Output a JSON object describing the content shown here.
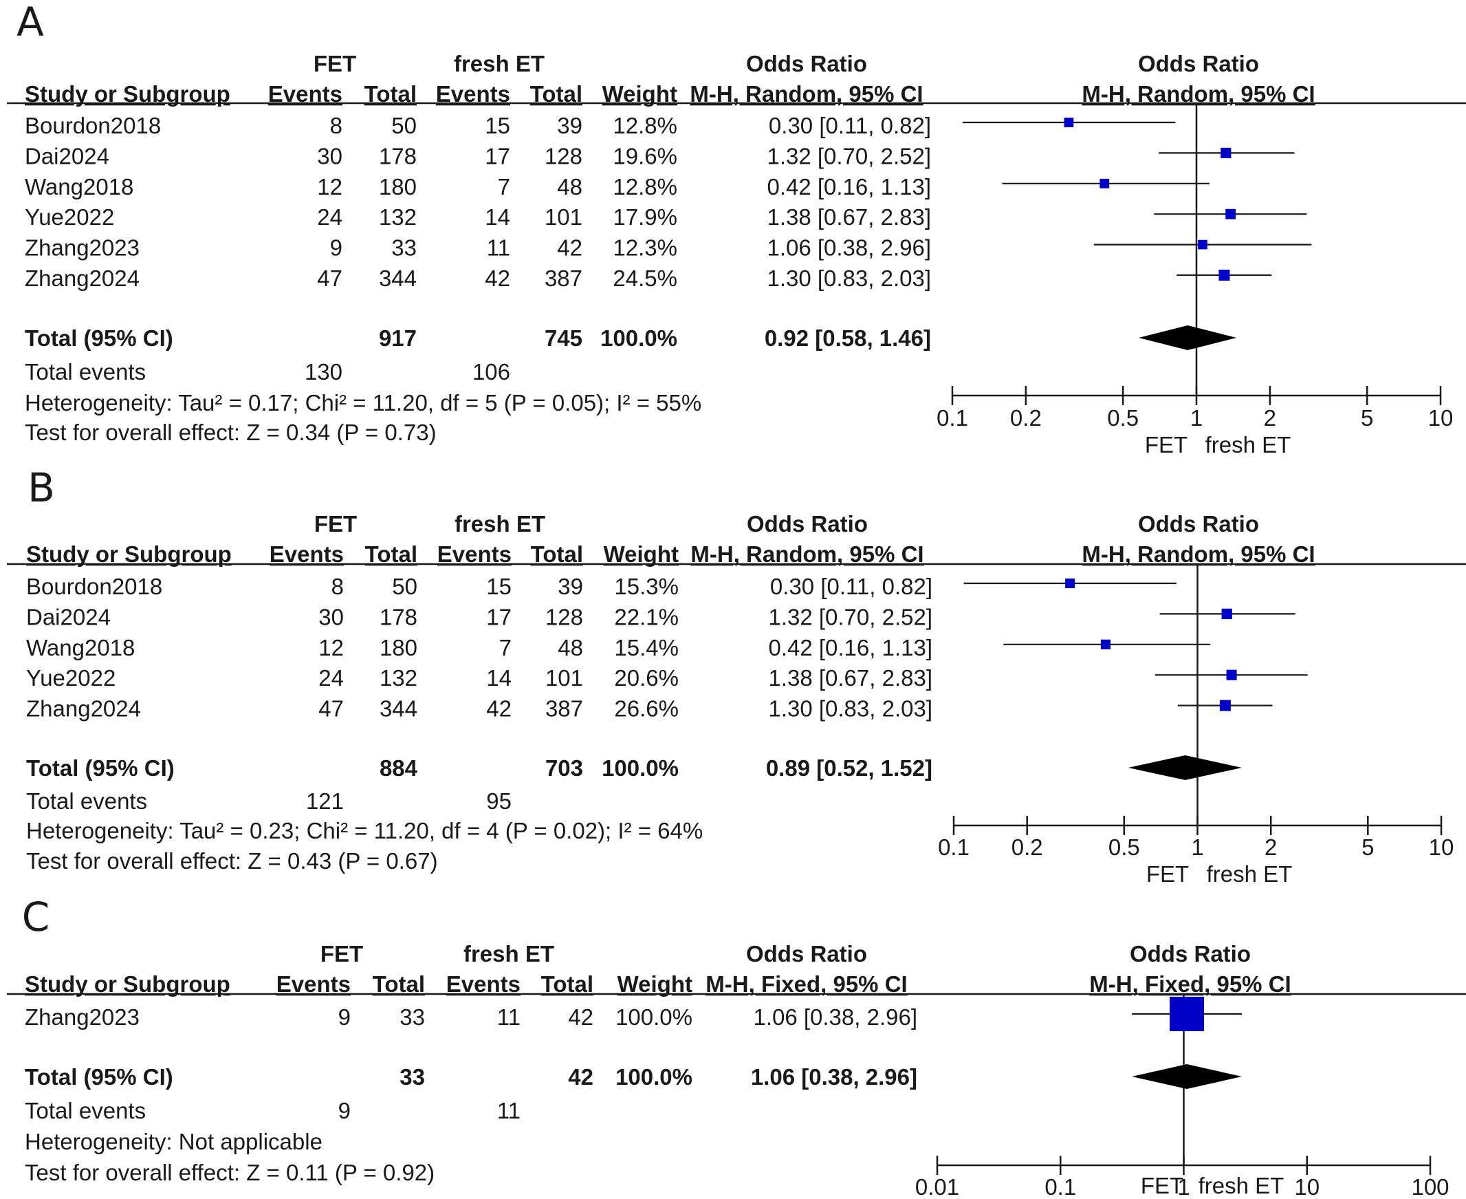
{
  "figure": {
    "panels": [
      {
        "label": "A",
        "group1": "FET",
        "group2": "fresh ET",
        "col_study": "Study or Subgroup",
        "col_events": "Events",
        "col_total": "Total",
        "col_weight": "Weight",
        "or_title": "Odds Ratio",
        "or_method": "M-H, Random, 95% CI",
        "studies": [
          {
            "name": "Bourdon2018",
            "e1": "8",
            "t1": "50",
            "e2": "15",
            "t2": "39",
            "weight": "12.8%",
            "or_text": "0.30 [0.11, 0.82]"
          },
          {
            "name": "Dai2024",
            "e1": "30",
            "t1": "178",
            "e2": "17",
            "t2": "128",
            "weight": "19.6%",
            "or_text": "1.32 [0.70, 2.52]"
          },
          {
            "name": "Wang2018",
            "e1": "12",
            "t1": "180",
            "e2": "7",
            "t2": "48",
            "weight": "12.8%",
            "or_text": "0.42 [0.16, 1.13]"
          },
          {
            "name": "Yue2022",
            "e1": "24",
            "t1": "132",
            "e2": "14",
            "t2": "101",
            "weight": "17.9%",
            "or_text": "1.38 [0.67, 2.83]"
          },
          {
            "name": "Zhang2023",
            "e1": "9",
            "t1": "33",
            "e2": "11",
            "t2": "42",
            "weight": "12.3%",
            "or_text": "1.06 [0.38, 2.96]"
          },
          {
            "name": "Zhang2024",
            "e1": "47",
            "t1": "344",
            "e2": "42",
            "t2": "387",
            "weight": "24.5%",
            "or_text": "1.30 [0.83, 2.03]"
          }
        ],
        "total_label": "Total (95% CI)",
        "total_t1": "917",
        "total_t2": "745",
        "total_weight": "100.0%",
        "total_or_text": "0.92 [0.58, 1.46]",
        "events_label": "Total events",
        "events1": "130",
        "events2": "106",
        "heterogeneity": "Heterogeneity: Tau² = 0.17; Chi² = 11.20, df = 5 (P = 0.05); I² = 55%",
        "overall": "Test for overall effect: Z = 0.34 (P = 0.73)",
        "left_label": "FET",
        "right_label": "fresh ET"
      },
      {
        "label": "B",
        "group1": "FET",
        "group2": "fresh ET",
        "col_study": "Study or Subgroup",
        "col_events": "Events",
        "col_total": "Total",
        "col_weight": "Weight",
        "or_title": "Odds Ratio",
        "or_method": "M-H, Random, 95% CI",
        "studies": [
          {
            "name": "Bourdon2018",
            "e1": "8",
            "t1": "50",
            "e2": "15",
            "t2": "39",
            "weight": "15.3%",
            "or_text": "0.30 [0.11, 0.82]"
          },
          {
            "name": "Dai2024",
            "e1": "30",
            "t1": "178",
            "e2": "17",
            "t2": "128",
            "weight": "22.1%",
            "or_text": "1.32 [0.70, 2.52]"
          },
          {
            "name": "Wang2018",
            "e1": "12",
            "t1": "180",
            "e2": "7",
            "t2": "48",
            "weight": "15.4%",
            "or_text": "0.42 [0.16, 1.13]"
          },
          {
            "name": "Yue2022",
            "e1": "24",
            "t1": "132",
            "e2": "14",
            "t2": "101",
            "weight": "20.6%",
            "or_text": "1.38 [0.67, 2.83]"
          },
          {
            "name": "Zhang2024",
            "e1": "47",
            "t1": "344",
            "e2": "42",
            "t2": "387",
            "weight": "26.6%",
            "or_text": "1.30 [0.83, 2.03]"
          }
        ],
        "total_label": "Total (95% CI)",
        "total_t1": "884",
        "total_t2": "703",
        "total_weight": "100.0%",
        "total_or_text": "0.89 [0.52, 1.52]",
        "events_label": "Total events",
        "events1": "121",
        "events2": "95",
        "heterogeneity": "Heterogeneity: Tau² = 0.23; Chi² = 11.20, df = 4 (P = 0.02); I² = 64%",
        "overall": "Test for overall effect: Z = 0.43 (P = 0.67)",
        "left_label": "FET",
        "right_label": "fresh ET"
      },
      {
        "label": "C",
        "group1": "FET",
        "group2": "fresh ET",
        "col_study": "Study or Subgroup",
        "col_events": "Events",
        "col_total": "Total",
        "col_weight": "Weight",
        "or_title": "Odds Ratio",
        "or_method": "M-H, Fixed, 95% CI",
        "studies": [
          {
            "name": "Zhang2023",
            "e1": "9",
            "t1": "33",
            "e2": "11",
            "t2": "42",
            "weight": "100.0%",
            "or_text": "1.06 [0.38, 2.96]"
          }
        ],
        "total_label": "Total (95% CI)",
        "total_t1": "33",
        "total_t2": "42",
        "total_weight": "100.0%",
        "total_or_text": "1.06 [0.38, 2.96]",
        "events_label": "Total events",
        "events1": "9",
        "events2": "11",
        "heterogeneity": "Heterogeneity: Not applicable",
        "overall": "Test for overall effect: Z = 0.11 (P = 0.92)",
        "left_label": "FET",
        "right_label": "fresh ET"
      }
    ]
  },
  "chart_data": [
    {
      "type": "forest",
      "panel": "A",
      "scale": "log",
      "xlim": [
        0.1,
        10
      ],
      "ticks": [
        0.1,
        0.2,
        0.5,
        1,
        2,
        5,
        10
      ],
      "tick_labels": [
        "0.1",
        "0.2",
        "0.5",
        "1",
        "2",
        "5",
        "10"
      ],
      "marker_color": "#0000c8",
      "studies": [
        {
          "name": "Bourdon2018",
          "or": 0.3,
          "lo": 0.11,
          "hi": 0.82,
          "weight": 12.8
        },
        {
          "name": "Dai2024",
          "or": 1.32,
          "lo": 0.7,
          "hi": 2.52,
          "weight": 19.6
        },
        {
          "name": "Wang2018",
          "or": 0.42,
          "lo": 0.16,
          "hi": 1.13,
          "weight": 12.8
        },
        {
          "name": "Yue2022",
          "or": 1.38,
          "lo": 0.67,
          "hi": 2.83,
          "weight": 17.9
        },
        {
          "name": "Zhang2023",
          "or": 1.06,
          "lo": 0.38,
          "hi": 2.96,
          "weight": 12.3
        },
        {
          "name": "Zhang2024",
          "or": 1.3,
          "lo": 0.83,
          "hi": 2.03,
          "weight": 24.5
        }
      ],
      "pooled": {
        "or": 0.92,
        "lo": 0.58,
        "hi": 1.46
      }
    },
    {
      "type": "forest",
      "panel": "B",
      "scale": "log",
      "xlim": [
        0.1,
        10
      ],
      "ticks": [
        0.1,
        0.2,
        0.5,
        1,
        2,
        5,
        10
      ],
      "tick_labels": [
        "0.1",
        "0.2",
        "0.5",
        "1",
        "2",
        "5",
        "10"
      ],
      "marker_color": "#0000c8",
      "studies": [
        {
          "name": "Bourdon2018",
          "or": 0.3,
          "lo": 0.11,
          "hi": 0.82,
          "weight": 15.3
        },
        {
          "name": "Dai2024",
          "or": 1.32,
          "lo": 0.7,
          "hi": 2.52,
          "weight": 22.1
        },
        {
          "name": "Wang2018",
          "or": 0.42,
          "lo": 0.16,
          "hi": 1.13,
          "weight": 15.4
        },
        {
          "name": "Yue2022",
          "or": 1.38,
          "lo": 0.67,
          "hi": 2.83,
          "weight": 20.6
        },
        {
          "name": "Zhang2024",
          "or": 1.3,
          "lo": 0.83,
          "hi": 2.03,
          "weight": 26.6
        }
      ],
      "pooled": {
        "or": 0.89,
        "lo": 0.52,
        "hi": 1.52
      }
    },
    {
      "type": "forest",
      "panel": "C",
      "scale": "log",
      "xlim": [
        0.01,
        100
      ],
      "ticks": [
        0.01,
        0.1,
        1,
        10,
        100
      ],
      "tick_labels": [
        "0.01",
        "0.1",
        "1",
        "10",
        "100"
      ],
      "marker_color": "#0000c8",
      "studies": [
        {
          "name": "Zhang2023",
          "or": 1.06,
          "lo": 0.38,
          "hi": 2.96,
          "weight": 100.0
        }
      ],
      "pooled": {
        "or": 1.06,
        "lo": 0.38,
        "hi": 2.96
      }
    }
  ]
}
